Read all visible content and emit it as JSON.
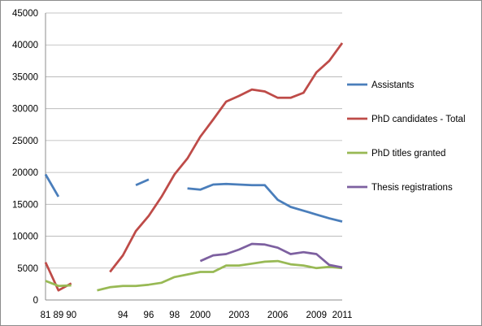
{
  "chart_data": {
    "type": "line",
    "title": "",
    "xlabel": "",
    "ylabel": "",
    "ylim": [
      0,
      45000
    ],
    "yticks": [
      0,
      5000,
      10000,
      15000,
      20000,
      25000,
      30000,
      35000,
      40000,
      45000
    ],
    "grid": "horizontal",
    "legend_position": "right",
    "x_categories": [
      "81",
      "89",
      "90",
      "91",
      "92",
      "93",
      "94",
      "95",
      "96",
      "97",
      "98",
      "99",
      "2000",
      "2001",
      "2002",
      "2003",
      "2004",
      "2005",
      "2006",
      "2007",
      "2008",
      "2009",
      "2010",
      "2011"
    ],
    "x_tick_labels": [
      {
        "index": 0,
        "label": "81"
      },
      {
        "index": 1,
        "label": "89"
      },
      {
        "index": 2,
        "label": "90"
      },
      {
        "index": 6,
        "label": "94"
      },
      {
        "index": 8,
        "label": "96"
      },
      {
        "index": 10,
        "label": "98"
      },
      {
        "index": 12,
        "label": "2000"
      },
      {
        "index": 15,
        "label": "2003"
      },
      {
        "index": 18,
        "label": "2006"
      },
      {
        "index": 21,
        "label": "2009"
      },
      {
        "index": 23,
        "label": "2011"
      }
    ],
    "series": [
      {
        "name": "Assistants",
        "color": "#4a7ebb",
        "values": [
          19700,
          16200,
          null,
          null,
          null,
          null,
          null,
          18000,
          18900,
          null,
          null,
          17500,
          17300,
          18100,
          18200,
          18100,
          18000,
          18000,
          15700,
          14600,
          14000,
          13400,
          12800,
          12300
        ]
      },
      {
        "name": "PhD candidates - Total",
        "color": "#be4b48",
        "values": [
          5900,
          1500,
          2600,
          null,
          null,
          4400,
          7000,
          10800,
          13200,
          16200,
          19700,
          22200,
          25600,
          28300,
          31100,
          32000,
          33000,
          32700,
          31700,
          31700,
          32500,
          35700,
          37500,
          40300
        ]
      },
      {
        "name": "PhD titles granted",
        "color": "#98b954",
        "values": [
          3000,
          2200,
          2300,
          null,
          1500,
          2000,
          2200,
          2200,
          2400,
          2700,
          3600,
          4000,
          4400,
          4400,
          5400,
          5400,
          5700,
          6000,
          6100,
          5600,
          5400,
          5000,
          5200,
          5000
        ]
      },
      {
        "name": "Thesis registrations",
        "color": "#7d60a0",
        "values": [
          null,
          null,
          null,
          null,
          null,
          null,
          null,
          null,
          null,
          null,
          null,
          null,
          6100,
          7000,
          7200,
          7900,
          8800,
          8700,
          8200,
          7200,
          7500,
          7200,
          5500,
          5100
        ]
      }
    ]
  }
}
